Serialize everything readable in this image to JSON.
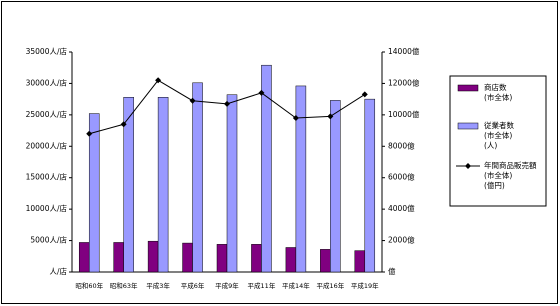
{
  "chart_data": {
    "type": "bar",
    "categories": [
      "昭和60年",
      "昭和63年",
      "平成3年",
      "平成6年",
      "平成9年",
      "平成11年",
      "平成14年",
      "平成16年",
      "平成19年"
    ],
    "series": [
      {
        "name": "商店数\n(市全体)",
        "type": "bar",
        "color": "#800080",
        "values": [
          4700,
          4700,
          4900,
          4600,
          4400,
          4400,
          3900,
          3600,
          3400
        ]
      },
      {
        "name": "従業者数\n(市全体)\n(人)",
        "type": "bar",
        "color": "#9999ff",
        "values": [
          25200,
          27800,
          27800,
          30100,
          28200,
          32900,
          29600,
          27300,
          27500
        ]
      },
      {
        "name": "年間商品販売額\n(市全体)\n(億円)",
        "type": "line",
        "axis": "y2",
        "color": "#000000",
        "values": [
          8800,
          9400,
          12200,
          10900,
          10700,
          11400,
          9800,
          9900,
          11300
        ]
      }
    ],
    "ylim": [
      0,
      35000
    ],
    "yticks": [
      {
        "value": 0,
        "label": "人/店"
      },
      {
        "value": 5000,
        "label": "5000人/店"
      },
      {
        "value": 10000,
        "label": "10000人/店"
      },
      {
        "value": 15000,
        "label": "15000人/店"
      },
      {
        "value": 20000,
        "label": "20000人/店"
      },
      {
        "value": 25000,
        "label": "25000人/店"
      },
      {
        "value": 30000,
        "label": "30000人/店"
      },
      {
        "value": 35000,
        "label": "35000人/店"
      }
    ],
    "y2lim": [
      0,
      14000
    ],
    "y2ticks": [
      {
        "value": 0,
        "label": "億"
      },
      {
        "value": 2000,
        "label": "2000億"
      },
      {
        "value": 4000,
        "label": "4000億"
      },
      {
        "value": 6000,
        "label": "6000億"
      },
      {
        "value": 8000,
        "label": "8000億"
      },
      {
        "value": 10000,
        "label": "10000億"
      },
      {
        "value": 12000,
        "label": "12000億"
      },
      {
        "value": 14000,
        "label": "14000億"
      }
    ]
  }
}
